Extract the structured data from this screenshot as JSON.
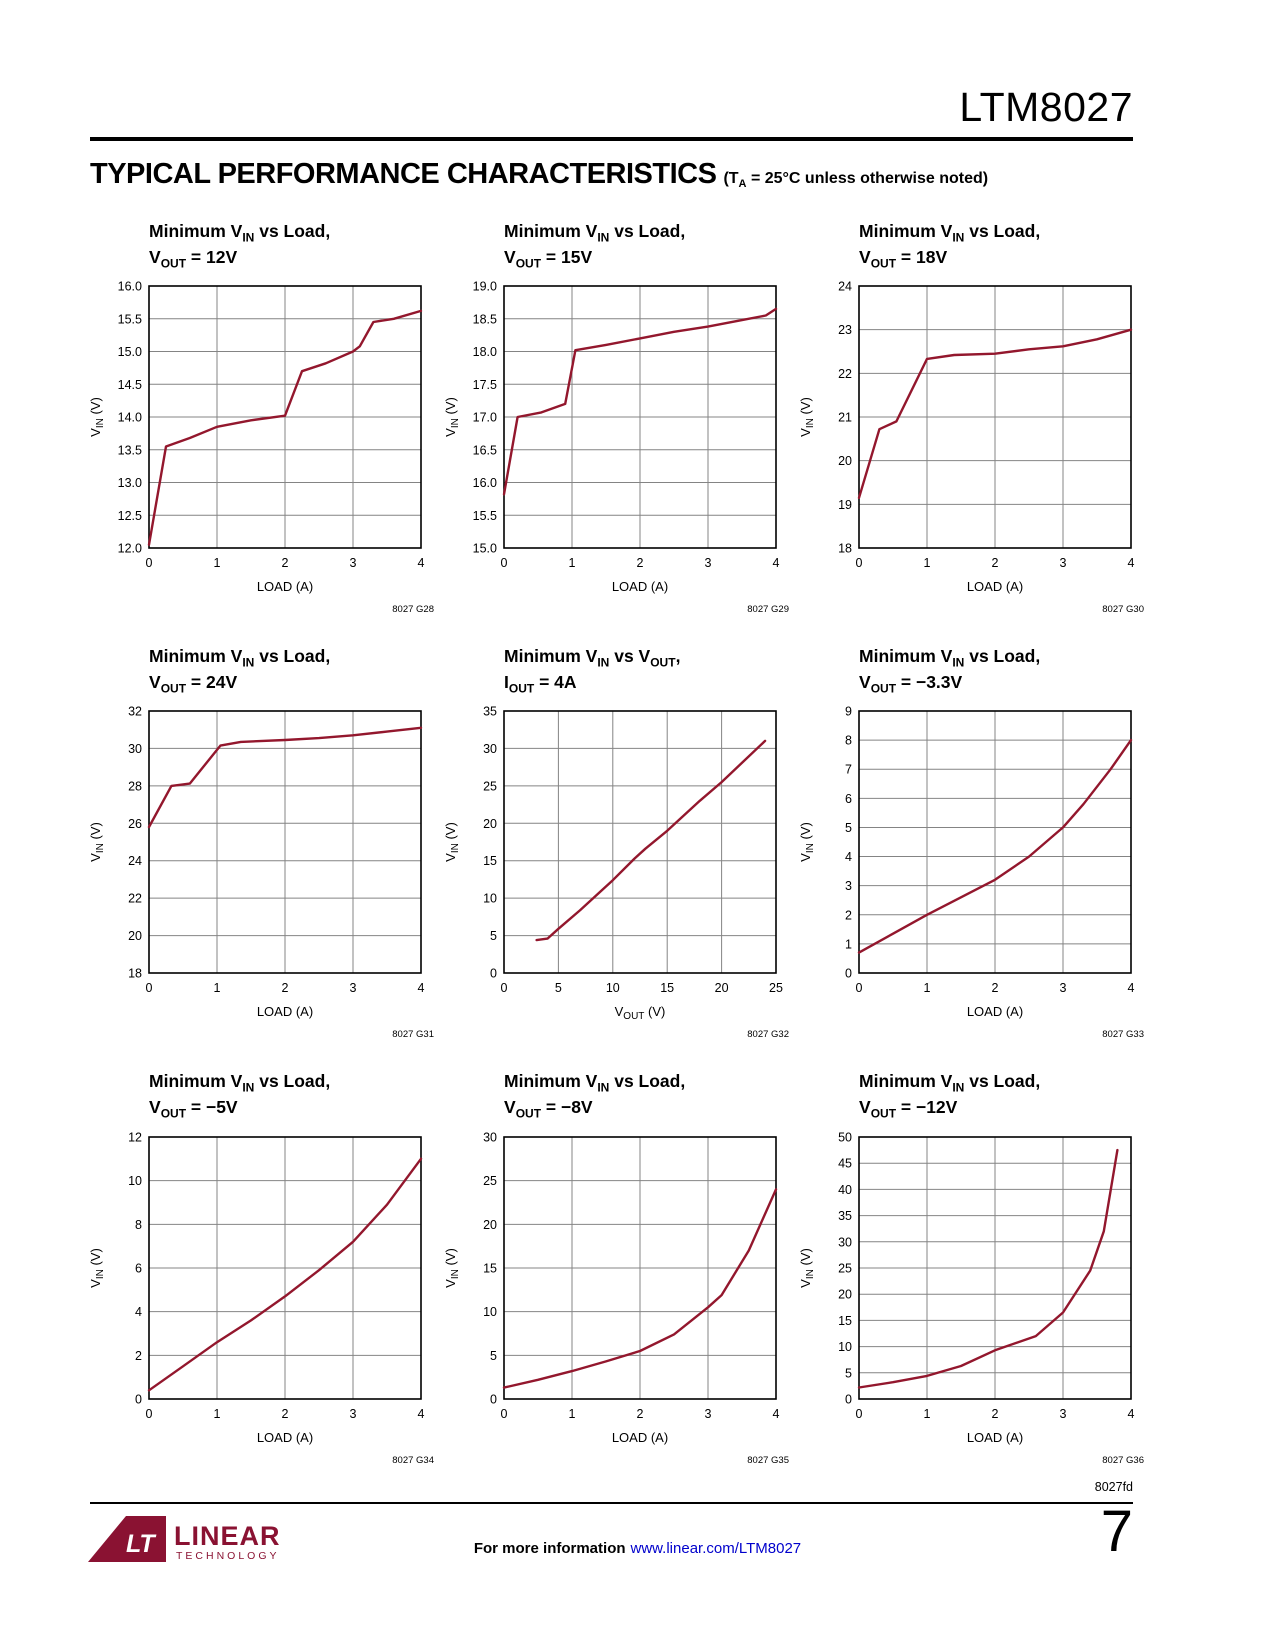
{
  "page": {
    "doc_id": "LTM8027",
    "section_title": "TYPICAL PERFORMANCE CHARACTERISTICS",
    "section_note": "(T~A~ = 25°C unless otherwise noted)",
    "rev_code": "8027fd",
    "page_number": "7",
    "footer_text": "For more information",
    "footer_link": "www.linear.com/LTM8027",
    "logo": {
      "mark": "LT",
      "name": "LINEAR",
      "sub": "TECHNOLOGY"
    }
  },
  "colors": {
    "curve": "#93172D",
    "grid": "#848484",
    "border": "#000000",
    "link": "#0000CC",
    "logo": "#8A1232"
  },
  "chart_data": [
    {
      "id": "8027 G28",
      "type": "line",
      "title_line1": "Minimum V~IN~ vs Load,",
      "title_line2": "V~OUT~ = 12V",
      "xlabel": "LOAD (A)",
      "ylabel": "V~IN~ (V)",
      "xlim": [
        0,
        4
      ],
      "ylim": [
        12,
        16
      ],
      "xticks": [
        "0",
        "1",
        "2",
        "3",
        "4"
      ],
      "yticks": [
        "12.0",
        "12.5",
        "13.0",
        "13.5",
        "14.0",
        "14.5",
        "15.0",
        "15.5",
        "16.0"
      ],
      "points": [
        [
          0,
          12.05
        ],
        [
          0.25,
          13.55
        ],
        [
          0.6,
          13.68
        ],
        [
          1,
          13.85
        ],
        [
          1.5,
          13.95
        ],
        [
          2,
          14.02
        ],
        [
          2.25,
          14.7
        ],
        [
          2.6,
          14.82
        ],
        [
          3,
          15.0
        ],
        [
          3.1,
          15.08
        ],
        [
          3.3,
          15.45
        ],
        [
          3.6,
          15.5
        ],
        [
          4,
          15.62
        ]
      ]
    },
    {
      "id": "8027 G29",
      "type": "line",
      "title_line1": "Minimum V~IN~ vs Load,",
      "title_line2": "V~OUT~ = 15V",
      "xlabel": "LOAD (A)",
      "ylabel": "V~IN~ (V)",
      "xlim": [
        0,
        4
      ],
      "ylim": [
        15,
        19
      ],
      "xticks": [
        "0",
        "1",
        "2",
        "3",
        "4"
      ],
      "yticks": [
        "15.0",
        "15.5",
        "16.0",
        "16.5",
        "17.0",
        "17.5",
        "18.0",
        "18.5",
        "19.0"
      ],
      "points": [
        [
          0,
          15.82
        ],
        [
          0.2,
          17.0
        ],
        [
          0.55,
          17.07
        ],
        [
          0.9,
          17.2
        ],
        [
          1.05,
          18.02
        ],
        [
          1.5,
          18.1
        ],
        [
          2,
          18.2
        ],
        [
          2.5,
          18.3
        ],
        [
          3,
          18.38
        ],
        [
          3.5,
          18.48
        ],
        [
          3.85,
          18.55
        ],
        [
          4,
          18.65
        ]
      ]
    },
    {
      "id": "8027 G30",
      "type": "line",
      "title_line1": "Minimum V~IN~ vs Load,",
      "title_line2": "V~OUT~ = 18V",
      "xlabel": "LOAD (A)",
      "ylabel": "V~IN~ (V)",
      "xlim": [
        0,
        4
      ],
      "ylim": [
        18,
        24
      ],
      "xticks": [
        "0",
        "1",
        "2",
        "3",
        "4"
      ],
      "yticks": [
        "18",
        "19",
        "20",
        "21",
        "22",
        "23",
        "24"
      ],
      "points": [
        [
          0,
          19.15
        ],
        [
          0.3,
          20.72
        ],
        [
          0.55,
          20.9
        ],
        [
          1,
          22.33
        ],
        [
          1.4,
          22.42
        ],
        [
          2,
          22.45
        ],
        [
          2.5,
          22.55
        ],
        [
          3,
          22.62
        ],
        [
          3.5,
          22.78
        ],
        [
          4,
          23.0
        ]
      ]
    },
    {
      "id": "8027 G31",
      "type": "line",
      "title_line1": "Minimum V~IN~ vs Load,",
      "title_line2": "V~OUT~ = 24V",
      "xlabel": "LOAD (A)",
      "ylabel": "V~IN~ (V)",
      "xlim": [
        0,
        4
      ],
      "ylim": [
        18,
        32
      ],
      "xticks": [
        "0",
        "1",
        "2",
        "3",
        "4"
      ],
      "yticks": [
        "18",
        "20",
        "22",
        "24",
        "26",
        "28",
        "30",
        "32"
      ],
      "points": [
        [
          0,
          25.8
        ],
        [
          0.33,
          28.0
        ],
        [
          0.6,
          28.12
        ],
        [
          1.05,
          30.15
        ],
        [
          1.35,
          30.35
        ],
        [
          2,
          30.45
        ],
        [
          2.5,
          30.55
        ],
        [
          3,
          30.7
        ],
        [
          3.5,
          30.9
        ],
        [
          4,
          31.1
        ]
      ]
    },
    {
      "id": "8027 G32",
      "type": "line",
      "title_line1": "Minimum V~IN~ vs V~OUT~,",
      "title_line2": "I~OUT~ = 4A",
      "xlabel": "V~OUT~ (V)",
      "ylabel": "V~IN~ (V)",
      "xlim": [
        0,
        25
      ],
      "ylim": [
        0,
        35
      ],
      "xticks": [
        "0",
        "5",
        "10",
        "15",
        "20",
        "25"
      ],
      "yticks": [
        "0",
        "5",
        "10",
        "15",
        "20",
        "25",
        "30",
        "35"
      ],
      "points": [
        [
          3,
          4.4
        ],
        [
          4,
          4.6
        ],
        [
          5,
          5.9
        ],
        [
          7,
          8.4
        ],
        [
          10,
          12.4
        ],
        [
          12,
          15.3
        ],
        [
          13,
          16.6
        ],
        [
          15,
          19.0
        ],
        [
          18,
          23.0
        ],
        [
          20,
          25.5
        ],
        [
          24,
          31.0
        ]
      ]
    },
    {
      "id": "8027 G33",
      "type": "line",
      "title_line1": "Minimum V~IN~ vs Load,",
      "title_line2": "V~OUT~ = −3.3V",
      "xlabel": "LOAD (A)",
      "ylabel": "V~IN~ (V)",
      "xlim": [
        0,
        4
      ],
      "ylim": [
        0,
        9
      ],
      "xticks": [
        "0",
        "1",
        "2",
        "3",
        "4"
      ],
      "yticks": [
        "0",
        "1",
        "2",
        "3",
        "4",
        "5",
        "6",
        "7",
        "8",
        "9"
      ],
      "points": [
        [
          0,
          0.7
        ],
        [
          0.5,
          1.35
        ],
        [
          1,
          2.0
        ],
        [
          1.5,
          2.6
        ],
        [
          2,
          3.2
        ],
        [
          2.5,
          4.0
        ],
        [
          3,
          5.0
        ],
        [
          3.3,
          5.8
        ],
        [
          3.7,
          7.0
        ],
        [
          4,
          8.0
        ]
      ]
    },
    {
      "id": "8027 G34",
      "type": "line",
      "title_line1": "Minimum V~IN~ vs Load,",
      "title_line2": "V~OUT~ = −5V",
      "xlabel": "LOAD (A)",
      "ylabel": "V~IN~ (V)",
      "xlim": [
        0,
        4
      ],
      "ylim": [
        0,
        12
      ],
      "xticks": [
        "0",
        "1",
        "2",
        "3",
        "4"
      ],
      "yticks": [
        "0",
        "2",
        "4",
        "6",
        "8",
        "10",
        "12"
      ],
      "points": [
        [
          0,
          0.4
        ],
        [
          0.5,
          1.5
        ],
        [
          1,
          2.6
        ],
        [
          1.5,
          3.6
        ],
        [
          2,
          4.7
        ],
        [
          2.5,
          5.9
        ],
        [
          3,
          7.2
        ],
        [
          3.5,
          8.9
        ],
        [
          4,
          11.0
        ]
      ]
    },
    {
      "id": "8027 G35",
      "type": "line",
      "title_line1": "Minimum V~IN~ vs Load,",
      "title_line2": "V~OUT~ = −8V",
      "xlabel": "LOAD (A)",
      "ylabel": "V~IN~ (V)",
      "xlim": [
        0,
        4
      ],
      "ylim": [
        0,
        30
      ],
      "xticks": [
        "0",
        "1",
        "2",
        "3",
        "4"
      ],
      "yticks": [
        "0",
        "5",
        "10",
        "15",
        "20",
        "25",
        "30"
      ],
      "points": [
        [
          0,
          1.3
        ],
        [
          0.5,
          2.2
        ],
        [
          1,
          3.2
        ],
        [
          1.5,
          4.3
        ],
        [
          2,
          5.5
        ],
        [
          2.5,
          7.4
        ],
        [
          3,
          10.5
        ],
        [
          3.2,
          11.9
        ],
        [
          3.6,
          17.0
        ],
        [
          4,
          24.0
        ]
      ]
    },
    {
      "id": "8027 G36",
      "type": "line",
      "title_line1": "Minimum V~IN~ vs Load,",
      "title_line2": "V~OUT~ = −12V",
      "xlabel": "LOAD (A)",
      "ylabel": "V~IN~ (V)",
      "xlim": [
        0,
        4
      ],
      "ylim": [
        0,
        50
      ],
      "xticks": [
        "0",
        "1",
        "2",
        "3",
        "4"
      ],
      "yticks": [
        "0",
        "5",
        "10",
        "15",
        "20",
        "25",
        "30",
        "35",
        "40",
        "45",
        "50"
      ],
      "points": [
        [
          0,
          2.2
        ],
        [
          0.5,
          3.2
        ],
        [
          1,
          4.4
        ],
        [
          1.5,
          6.3
        ],
        [
          2,
          9.3
        ],
        [
          2.6,
          12.0
        ],
        [
          3,
          16.5
        ],
        [
          3.4,
          24.5
        ],
        [
          3.6,
          32.0
        ],
        [
          3.8,
          47.5
        ]
      ]
    }
  ]
}
